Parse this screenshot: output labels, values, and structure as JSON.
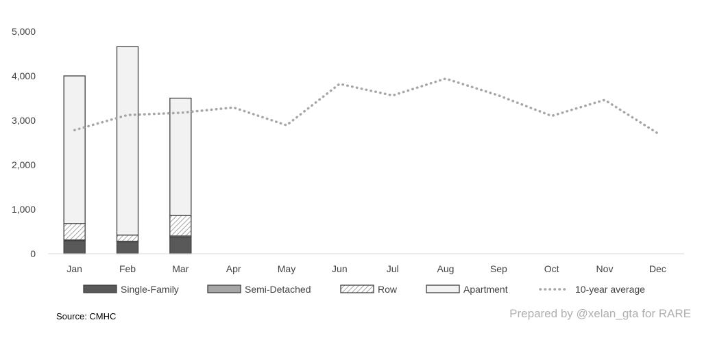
{
  "chart_data": {
    "type": "bar",
    "stacked": true,
    "categories": [
      "Jan",
      "Feb",
      "Mar",
      "Apr",
      "May",
      "Jun",
      "Jul",
      "Aug",
      "Sep",
      "Oct",
      "Nov",
      "Dec"
    ],
    "ylim": [
      0,
      5000
    ],
    "yticks": [
      0,
      1000,
      2000,
      3000,
      4000,
      5000
    ],
    "ytick_labels": [
      "0",
      "1,000",
      "2,000",
      "3,000",
      "4,000",
      "5,000"
    ],
    "grid": false,
    "legend_position": "bottom",
    "series": [
      {
        "name": "Single-Family",
        "kind": "bar",
        "color": "#595959",
        "pattern": "solid",
        "values": [
          290,
          270,
          370,
          null,
          null,
          null,
          null,
          null,
          null,
          null,
          null,
          null
        ]
      },
      {
        "name": "Semi-Detached",
        "kind": "bar",
        "color": "#a6a6a6",
        "pattern": "solid",
        "values": [
          20,
          10,
          30,
          null,
          null,
          null,
          null,
          null,
          null,
          null,
          null,
          null
        ]
      },
      {
        "name": "Row",
        "kind": "bar",
        "color": "#d9d9d9",
        "pattern": "hatch",
        "values": [
          370,
          140,
          460,
          null,
          null,
          null,
          null,
          null,
          null,
          null,
          null,
          null
        ]
      },
      {
        "name": "Apartment",
        "kind": "bar",
        "color": "#f2f2f2",
        "pattern": "outline",
        "values": [
          3320,
          4240,
          2640,
          null,
          null,
          null,
          null,
          null,
          null,
          null,
          null,
          null
        ]
      },
      {
        "name": "10-year average",
        "kind": "line",
        "color": "#a6a6a6",
        "pattern": "dotted",
        "values": [
          2780,
          3120,
          3170,
          3290,
          2890,
          3820,
          3560,
          3940,
          3560,
          3100,
          3460,
          2710
        ]
      }
    ]
  },
  "footer": {
    "source": "Source: CMHC",
    "credit": "Prepared by @xelan_gta for RARE"
  }
}
